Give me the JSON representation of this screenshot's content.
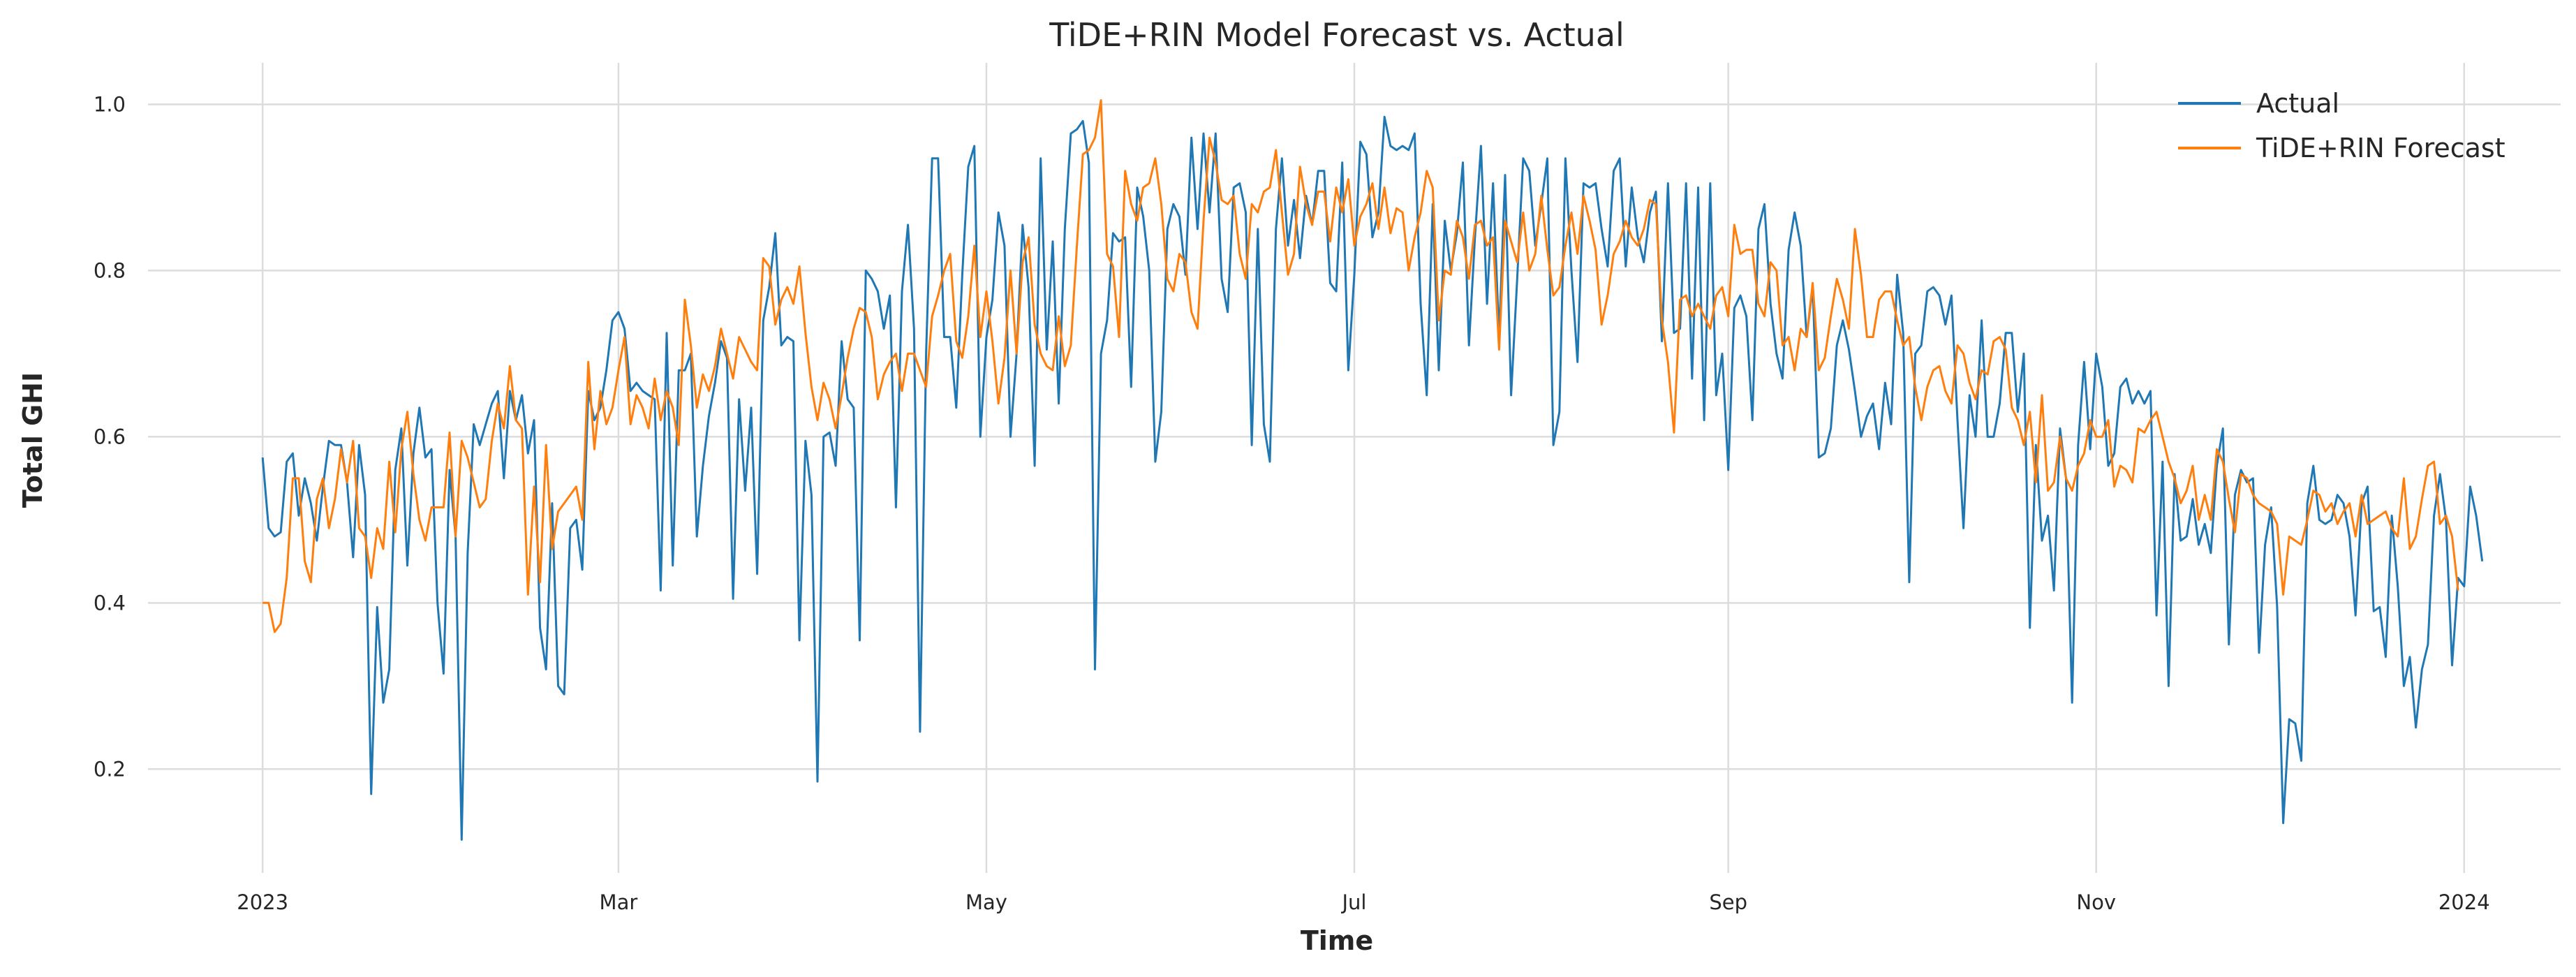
{
  "chart_data": {
    "type": "line",
    "title": "TiDE+RIN Model Forecast vs. Actual",
    "xlabel": "Time",
    "ylabel": "Total GHI",
    "x_start": "2023-01-01",
    "x_step": "1 day",
    "xlim": [
      "2022-12-13",
      "2024-01-17"
    ],
    "ylim": [
      0.075,
      1.05
    ],
    "xticks": [
      {
        "date": "2023-01-01",
        "label": "2023"
      },
      {
        "date": "2023-03-01",
        "label": "Mar"
      },
      {
        "date": "2023-05-01",
        "label": "May"
      },
      {
        "date": "2023-07-01",
        "label": "Jul"
      },
      {
        "date": "2023-09-01",
        "label": "Sep"
      },
      {
        "date": "2023-11-01",
        "label": "Nov"
      },
      {
        "date": "2024-01-01",
        "label": "2024"
      }
    ],
    "yticks": [
      0.2,
      0.4,
      0.6,
      0.8,
      1.0
    ],
    "grid": true,
    "legend": "top-right",
    "series": [
      {
        "name": "Actual",
        "color": "#1f77b4",
        "values": [
          0.575,
          0.49,
          0.48,
          0.485,
          0.57,
          0.58,
          0.505,
          0.55,
          0.52,
          0.475,
          0.54,
          0.595,
          0.59,
          0.59,
          0.545,
          0.455,
          0.59,
          0.53,
          0.17,
          0.395,
          0.28,
          0.32,
          0.56,
          0.61,
          0.445,
          0.58,
          0.635,
          0.575,
          0.585,
          0.4,
          0.315,
          0.56,
          0.48,
          0.115,
          0.46,
          0.615,
          0.59,
          0.615,
          0.64,
          0.655,
          0.55,
          0.655,
          0.62,
          0.65,
          0.58,
          0.62,
          0.37,
          0.32,
          0.52,
          0.3,
          0.29,
          0.49,
          0.5,
          0.44,
          0.655,
          0.62,
          0.635,
          0.68,
          0.74,
          0.75,
          0.73,
          0.655,
          0.665,
          0.655,
          0.65,
          0.645,
          0.415,
          0.725,
          0.445,
          0.68,
          0.68,
          0.7,
          0.48,
          0.565,
          0.625,
          0.665,
          0.715,
          0.695,
          0.405,
          0.645,
          0.535,
          0.635,
          0.435,
          0.74,
          0.78,
          0.845,
          0.71,
          0.72,
          0.715,
          0.355,
          0.595,
          0.53,
          0.185,
          0.6,
          0.605,
          0.565,
          0.715,
          0.645,
          0.635,
          0.355,
          0.8,
          0.79,
          0.775,
          0.73,
          0.77,
          0.515,
          0.775,
          0.855,
          0.73,
          0.245,
          0.7,
          0.935,
          0.935,
          0.72,
          0.72,
          0.635,
          0.795,
          0.925,
          0.95,
          0.6,
          0.72,
          0.765,
          0.87,
          0.83,
          0.6,
          0.7,
          0.855,
          0.78,
          0.565,
          0.935,
          0.705,
          0.835,
          0.64,
          0.85,
          0.965,
          0.97,
          0.98,
          0.93,
          0.32,
          0.7,
          0.74,
          0.845,
          0.835,
          0.84,
          0.66,
          0.9,
          0.865,
          0.8,
          0.57,
          0.63,
          0.85,
          0.88,
          0.865,
          0.795,
          0.96,
          0.85,
          0.965,
          0.87,
          0.965,
          0.79,
          0.75,
          0.9,
          0.905,
          0.87,
          0.59,
          0.85,
          0.615,
          0.57,
          0.85,
          0.935,
          0.83,
          0.885,
          0.815,
          0.89,
          0.855,
          0.92,
          0.92,
          0.785,
          0.775,
          0.93,
          0.68,
          0.795,
          0.955,
          0.94,
          0.84,
          0.87,
          0.985,
          0.95,
          0.945,
          0.95,
          0.945,
          0.965,
          0.76,
          0.65,
          0.88,
          0.68,
          0.86,
          0.8,
          0.845,
          0.93,
          0.71,
          0.84,
          0.95,
          0.76,
          0.905,
          0.72,
          0.915,
          0.65,
          0.79,
          0.935,
          0.92,
          0.83,
          0.88,
          0.935,
          0.59,
          0.63,
          0.935,
          0.8,
          0.69,
          0.905,
          0.9,
          0.905,
          0.85,
          0.805,
          0.92,
          0.935,
          0.805,
          0.9,
          0.84,
          0.81,
          0.87,
          0.895,
          0.715,
          0.905,
          0.725,
          0.73,
          0.905,
          0.67,
          0.9,
          0.62,
          0.905,
          0.65,
          0.7,
          0.56,
          0.755,
          0.77,
          0.745,
          0.62,
          0.85,
          0.88,
          0.76,
          0.7,
          0.67,
          0.825,
          0.87,
          0.83,
          0.72,
          0.78,
          0.575,
          0.58,
          0.61,
          0.71,
          0.74,
          0.705,
          0.655,
          0.6,
          0.625,
          0.64,
          0.585,
          0.665,
          0.615,
          0.795,
          0.725,
          0.425,
          0.7,
          0.71,
          0.775,
          0.78,
          0.77,
          0.735,
          0.77,
          0.62,
          0.49,
          0.65,
          0.6,
          0.74,
          0.6,
          0.6,
          0.64,
          0.725,
          0.725,
          0.63,
          0.7,
          0.37,
          0.59,
          0.475,
          0.505,
          0.415,
          0.61,
          0.55,
          0.28,
          0.59,
          0.69,
          0.585,
          0.7,
          0.66,
          0.565,
          0.58,
          0.66,
          0.67,
          0.64,
          0.655,
          0.64,
          0.655,
          0.385,
          0.57,
          0.3,
          0.555,
          0.475,
          0.48,
          0.525,
          0.47,
          0.495,
          0.46,
          0.565,
          0.61,
          0.35,
          0.53,
          0.56,
          0.545,
          0.55,
          0.34,
          0.47,
          0.515,
          0.395,
          0.135,
          0.26,
          0.255,
          0.21,
          0.52,
          0.565,
          0.5,
          0.495,
          0.5,
          0.53,
          0.52,
          0.48,
          0.385,
          0.52,
          0.54,
          0.39,
          0.395,
          0.335,
          0.505,
          0.42,
          0.3,
          0.335,
          0.25,
          0.32,
          0.35,
          0.505,
          0.555,
          0.5,
          0.325,
          0.43,
          0.42,
          0.54,
          0.505,
          0.45
        ]
      },
      {
        "name": "TiDE+RIN Forecast",
        "color": "#ff7f0e",
        "values": [
          0.4,
          0.4,
          0.365,
          0.375,
          0.43,
          0.55,
          0.55,
          0.45,
          0.425,
          0.525,
          0.55,
          0.49,
          0.525,
          0.585,
          0.545,
          0.595,
          0.49,
          0.48,
          0.43,
          0.49,
          0.465,
          0.57,
          0.485,
          0.585,
          0.63,
          0.555,
          0.5,
          0.475,
          0.515,
          0.515,
          0.515,
          0.605,
          0.48,
          0.595,
          0.575,
          0.545,
          0.515,
          0.525,
          0.595,
          0.64,
          0.61,
          0.685,
          0.62,
          0.61,
          0.41,
          0.54,
          0.425,
          0.59,
          0.465,
          0.51,
          0.52,
          0.53,
          0.54,
          0.5,
          0.69,
          0.585,
          0.655,
          0.615,
          0.635,
          0.68,
          0.72,
          0.615,
          0.65,
          0.635,
          0.61,
          0.67,
          0.62,
          0.655,
          0.635,
          0.59,
          0.765,
          0.71,
          0.635,
          0.675,
          0.655,
          0.685,
          0.73,
          0.7,
          0.67,
          0.72,
          0.705,
          0.69,
          0.68,
          0.815,
          0.805,
          0.735,
          0.765,
          0.78,
          0.76,
          0.805,
          0.725,
          0.66,
          0.62,
          0.665,
          0.645,
          0.61,
          0.65,
          0.695,
          0.73,
          0.755,
          0.75,
          0.72,
          0.645,
          0.675,
          0.69,
          0.7,
          0.655,
          0.7,
          0.7,
          0.68,
          0.66,
          0.745,
          0.77,
          0.8,
          0.82,
          0.715,
          0.695,
          0.745,
          0.83,
          0.72,
          0.775,
          0.715,
          0.64,
          0.695,
          0.8,
          0.7,
          0.81,
          0.84,
          0.735,
          0.7,
          0.685,
          0.68,
          0.745,
          0.685,
          0.71,
          0.83,
          0.94,
          0.945,
          0.96,
          1.005,
          0.82,
          0.805,
          0.72,
          0.92,
          0.88,
          0.86,
          0.9,
          0.905,
          0.935,
          0.88,
          0.79,
          0.775,
          0.82,
          0.81,
          0.75,
          0.73,
          0.86,
          0.96,
          0.93,
          0.885,
          0.88,
          0.89,
          0.82,
          0.79,
          0.88,
          0.87,
          0.895,
          0.9,
          0.945,
          0.87,
          0.795,
          0.82,
          0.925,
          0.88,
          0.855,
          0.895,
          0.895,
          0.835,
          0.9,
          0.87,
          0.91,
          0.83,
          0.865,
          0.88,
          0.905,
          0.85,
          0.9,
          0.845,
          0.875,
          0.87,
          0.8,
          0.84,
          0.87,
          0.92,
          0.9,
          0.74,
          0.8,
          0.795,
          0.86,
          0.84,
          0.79,
          0.855,
          0.86,
          0.83,
          0.84,
          0.705,
          0.86,
          0.835,
          0.81,
          0.87,
          0.8,
          0.82,
          0.89,
          0.825,
          0.77,
          0.78,
          0.83,
          0.87,
          0.82,
          0.89,
          0.86,
          0.825,
          0.735,
          0.77,
          0.82,
          0.835,
          0.86,
          0.84,
          0.83,
          0.85,
          0.885,
          0.88,
          0.74,
          0.69,
          0.605,
          0.765,
          0.77,
          0.745,
          0.76,
          0.745,
          0.73,
          0.77,
          0.78,
          0.745,
          0.855,
          0.82,
          0.825,
          0.825,
          0.76,
          0.745,
          0.81,
          0.8,
          0.71,
          0.72,
          0.68,
          0.73,
          0.72,
          0.785,
          0.68,
          0.695,
          0.745,
          0.79,
          0.765,
          0.73,
          0.85,
          0.795,
          0.72,
          0.72,
          0.765,
          0.775,
          0.775,
          0.74,
          0.71,
          0.72,
          0.66,
          0.62,
          0.66,
          0.68,
          0.685,
          0.655,
          0.64,
          0.71,
          0.7,
          0.665,
          0.645,
          0.68,
          0.675,
          0.715,
          0.72,
          0.705,
          0.635,
          0.62,
          0.59,
          0.63,
          0.545,
          0.65,
          0.535,
          0.545,
          0.6,
          0.55,
          0.535,
          0.565,
          0.58,
          0.62,
          0.6,
          0.6,
          0.62,
          0.54,
          0.565,
          0.56,
          0.545,
          0.61,
          0.605,
          0.62,
          0.63,
          0.6,
          0.57,
          0.55,
          0.52,
          0.535,
          0.565,
          0.5,
          0.53,
          0.5,
          0.585,
          0.57,
          0.525,
          0.485,
          0.555,
          0.55,
          0.53,
          0.52,
          0.515,
          0.51,
          0.495,
          0.41,
          0.48,
          0.475,
          0.47,
          0.5,
          0.535,
          0.53,
          0.51,
          0.52,
          0.495,
          0.51,
          0.52,
          0.48,
          0.53,
          0.495,
          0.5,
          0.505,
          0.51,
          0.49,
          0.48,
          0.55,
          0.465,
          0.48,
          0.525,
          0.565,
          0.57,
          0.495,
          0.505,
          0.48,
          0.415
        ]
      }
    ]
  }
}
